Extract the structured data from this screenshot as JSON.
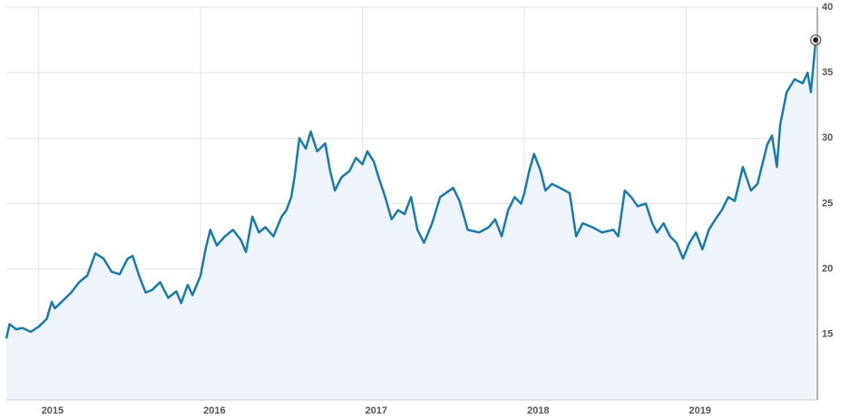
{
  "chart_data": {
    "type": "area-line",
    "x": [
      2014.8,
      2014.82,
      2014.86,
      2014.9,
      2014.95,
      2015.0,
      2015.05,
      2015.08,
      2015.1,
      2015.15,
      2015.2,
      2015.25,
      2015.3,
      2015.35,
      2015.4,
      2015.45,
      2015.5,
      2015.55,
      2015.58,
      2015.62,
      2015.66,
      2015.7,
      2015.75,
      2015.8,
      2015.85,
      2015.88,
      2015.92,
      2015.95,
      2016.0,
      2016.03,
      2016.06,
      2016.1,
      2016.15,
      2016.2,
      2016.25,
      2016.28,
      2016.32,
      2016.36,
      2016.4,
      2016.45,
      2016.5,
      2016.53,
      2016.56,
      2016.58,
      2016.61,
      2016.65,
      2016.68,
      2016.72,
      2016.77,
      2016.8,
      2016.83,
      2016.87,
      2016.92,
      2016.96,
      2017.0,
      2017.03,
      2017.07,
      2017.1,
      2017.14,
      2017.18,
      2017.22,
      2017.26,
      2017.3,
      2017.34,
      2017.38,
      2017.43,
      2017.48,
      2017.56,
      2017.6,
      2017.65,
      2017.72,
      2017.78,
      2017.82,
      2017.86,
      2017.9,
      2017.94,
      2017.98,
      2018.0,
      2018.03,
      2018.06,
      2018.1,
      2018.13,
      2018.17,
      2018.22,
      2018.28,
      2018.32,
      2018.36,
      2018.42,
      2018.48,
      2018.55,
      2018.58,
      2018.62,
      2018.66,
      2018.7,
      2018.75,
      2018.79,
      2018.82,
      2018.86,
      2018.9,
      2018.94,
      2018.98,
      2019.02,
      2019.06,
      2019.1,
      2019.14,
      2019.18,
      2019.22,
      2019.26,
      2019.3,
      2019.35,
      2019.4,
      2019.44,
      2019.5,
      2019.53,
      2019.56,
      2019.58,
      2019.62,
      2019.67,
      2019.72,
      2019.75,
      2019.77,
      2019.8
    ],
    "values": [
      14.7,
      15.8,
      15.4,
      15.5,
      15.2,
      15.6,
      16.2,
      17.5,
      17.0,
      17.6,
      18.2,
      19.0,
      19.5,
      21.2,
      20.8,
      19.8,
      19.6,
      20.8,
      21.0,
      19.5,
      18.2,
      18.4,
      19.0,
      17.8,
      18.3,
      17.4,
      18.8,
      18.0,
      19.5,
      21.5,
      23.0,
      21.8,
      22.5,
      23.0,
      22.2,
      21.3,
      24.0,
      22.8,
      23.2,
      22.5,
      24.0,
      24.5,
      25.5,
      27.0,
      30.0,
      29.2,
      30.5,
      29.0,
      29.6,
      27.5,
      26.0,
      27.0,
      27.5,
      28.5,
      28.0,
      29.0,
      28.2,
      27.0,
      25.5,
      23.8,
      24.5,
      24.2,
      25.5,
      23.0,
      22.0,
      23.5,
      25.5,
      26.2,
      25.2,
      23.0,
      22.8,
      23.2,
      23.8,
      22.5,
      24.5,
      25.5,
      25.0,
      25.8,
      27.5,
      28.8,
      27.5,
      26.0,
      26.5,
      26.2,
      25.8,
      22.5,
      23.5,
      23.2,
      22.8,
      23.0,
      22.5,
      26.0,
      25.5,
      24.8,
      25.0,
      23.5,
      22.8,
      23.5,
      22.5,
      22.0,
      20.8,
      22.0,
      22.8,
      21.5,
      23.0,
      23.8,
      24.5,
      25.5,
      25.2,
      27.8,
      26.0,
      26.5,
      29.5,
      30.2,
      27.8,
      31.0,
      33.5,
      34.5,
      34.2,
      35.0,
      33.5,
      37.5
    ],
    "color": "#1c7aa8",
    "fill_color": "#eef4f9",
    "xlim": [
      2014.8,
      2019.81
    ],
    "xticks": [
      2015,
      2016,
      2017,
      2018,
      2019
    ],
    "ylim": [
      10,
      40
    ],
    "yticks": [
      15,
      20,
      25,
      30,
      35,
      40
    ],
    "grid": true
  }
}
